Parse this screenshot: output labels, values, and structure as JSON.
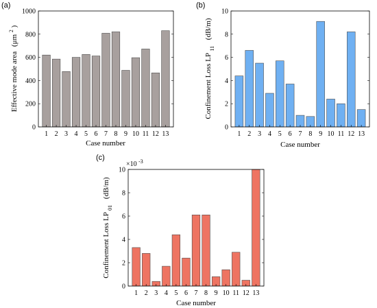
{
  "chart_data": [
    {
      "type": "bar",
      "panel_label": "(a)",
      "categories": [
        "1",
        "2",
        "3",
        "4",
        "5",
        "6",
        "7",
        "8",
        "9",
        "10",
        "11",
        "12",
        "13"
      ],
      "values": [
        620,
        585,
        478,
        600,
        625,
        612,
        808,
        820,
        488,
        597,
        672,
        466,
        830
      ],
      "ylim": [
        0,
        1000
      ],
      "yticks": [
        "0",
        "200",
        "400",
        "600",
        "800",
        "1000"
      ],
      "xlabel": "Case number",
      "ylabel": "Effective mode area",
      "ylabel_unit": "(μm²)",
      "ylabel_unit_base": "(μm",
      "ylabel_unit_sup": "2",
      "ylabel_unit_close": ")",
      "color": "#a8a09e",
      "grid": false
    },
    {
      "type": "bar",
      "panel_label": "(b)",
      "categories": [
        "1",
        "2",
        "3",
        "4",
        "5",
        "6",
        "7",
        "8",
        "9",
        "10",
        "11",
        "12",
        "13"
      ],
      "values": [
        4.4,
        6.6,
        5.5,
        2.9,
        5.7,
        3.7,
        1.0,
        0.9,
        9.1,
        2.4,
        2.0,
        8.2,
        1.5
      ],
      "ylim": [
        0,
        10
      ],
      "yticks": [
        "0",
        "2",
        "4",
        "6",
        "8",
        "10"
      ],
      "xlabel": "Case number",
      "ylabel": "Confinement Loss LP",
      "ylabel_sub": "11",
      "ylabel_unit": "(dB/m)",
      "color": "#6fb0f2",
      "grid": false
    },
    {
      "type": "bar",
      "panel_label": "(c)",
      "categories": [
        "1",
        "2",
        "3",
        "4",
        "5",
        "6",
        "7",
        "8",
        "9",
        "10",
        "11",
        "12",
        "13"
      ],
      "values": [
        0.0033,
        0.0028,
        0.0004,
        0.0017,
        0.0044,
        0.0024,
        0.0061,
        0.0061,
        0.0008,
        0.0014,
        0.0029,
        0.0005,
        0.01
      ],
      "ylim": [
        0,
        0.01
      ],
      "yticks": [
        "0",
        "2",
        "4",
        "6",
        "8",
        "10"
      ],
      "exponent_label": "×10",
      "exponent_power": "-3",
      "xlabel": "Case number",
      "ylabel": "Confinement Loss LP",
      "ylabel_sub": "01",
      "ylabel_unit": "(dB/m)",
      "color": "#ee7462",
      "grid": false
    }
  ]
}
